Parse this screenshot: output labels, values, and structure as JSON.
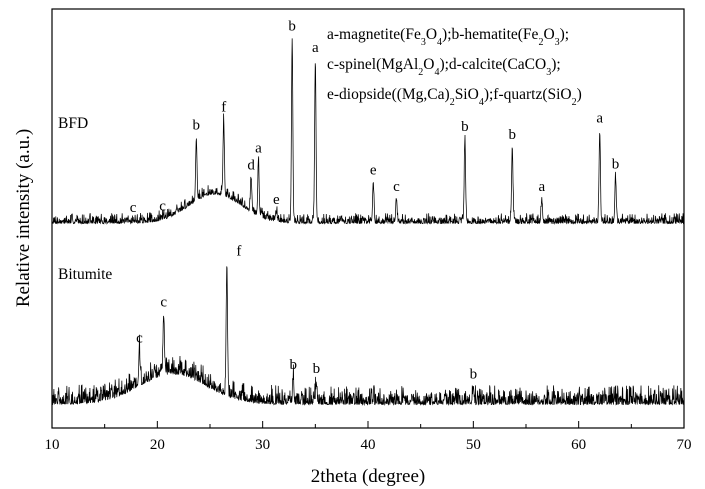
{
  "chart_data": {
    "type": "line",
    "xlabel": "2theta (degree)",
    "ylabel": "Relative intensity (a.u.)",
    "xlim": [
      10,
      70
    ],
    "x_ticks": [
      "10",
      "20",
      "30",
      "40",
      "50",
      "60",
      "70"
    ],
    "grid": false,
    "y_tick_labels": false,
    "legend": {
      "placement": "top-right",
      "lines": [
        [
          {
            "t": "a-magnetite(Fe"
          },
          {
            "t": "3",
            "sub": true
          },
          {
            "t": "O"
          },
          {
            "t": "4",
            "sub": true
          },
          {
            "t": ");b-hematite(Fe"
          },
          {
            "t": "2",
            "sub": true
          },
          {
            "t": "O"
          },
          {
            "t": "3",
            "sub": true
          },
          {
            "t": ");"
          }
        ],
        [
          {
            "t": "c-spinel(MgAl"
          },
          {
            "t": "2",
            "sub": true
          },
          {
            "t": "O"
          },
          {
            "t": "4",
            "sub": true
          },
          {
            "t": ");d-calcite(CaCO"
          },
          {
            "t": "3",
            "sub": true
          },
          {
            "t": ");"
          }
        ],
        [
          {
            "t": "e-diopside((Mg,Ca)"
          },
          {
            "t": "2",
            "sub": true
          },
          {
            "t": "SiO"
          },
          {
            "t": "4",
            "sub": true
          },
          {
            "t": ");f-quartz(SiO"
          },
          {
            "t": "2",
            "sub": true
          },
          {
            "t": ")"
          }
        ]
      ]
    },
    "series": [
      {
        "name": "BFD",
        "baseline": 12,
        "noise": 5,
        "hump": {
          "center": 25.5,
          "width": 3.5,
          "height": 14
        },
        "peaks": [
          {
            "x": 17.7,
            "y": 13,
            "label": "c"
          },
          {
            "x": 20.5,
            "y": 12,
            "label": "c"
          },
          {
            "x": 23.7,
            "y": 42,
            "label": "b"
          },
          {
            "x": 26.3,
            "y": 48,
            "label": "f"
          },
          {
            "x": 28.9,
            "y": 28,
            "label": "d"
          },
          {
            "x": 29.6,
            "y": 38,
            "label": "a"
          },
          {
            "x": 31.3,
            "y": 16,
            "label": "e"
          },
          {
            "x": 32.8,
            "y": 100,
            "label": "b"
          },
          {
            "x": 35.0,
            "y": 90,
            "label": "a"
          },
          {
            "x": 40.5,
            "y": 31,
            "label": "e"
          },
          {
            "x": 42.7,
            "y": 23,
            "label": "c"
          },
          {
            "x": 49.2,
            "y": 52,
            "label": "b"
          },
          {
            "x": 53.7,
            "y": 48,
            "label": "b"
          },
          {
            "x": 56.5,
            "y": 23,
            "label": "a"
          },
          {
            "x": 62.0,
            "y": 56,
            "label": "a"
          },
          {
            "x": 63.5,
            "y": 34,
            "label": "b"
          }
        ]
      },
      {
        "name": "Bitumite",
        "baseline": 6,
        "noise": 14,
        "hump": {
          "center": 21.5,
          "width": 4.5,
          "height": 22
        },
        "peaks": [
          {
            "x": 18.3,
            "y": 30,
            "label": "c"
          },
          {
            "x": 20.6,
            "y": 48,
            "label": "c"
          },
          {
            "x": 26.6,
            "y": 100,
            "label": "f"
          },
          {
            "x": 32.9,
            "y": 24,
            "label": "b"
          },
          {
            "x": 35.1,
            "y": 21,
            "label": "b"
          },
          {
            "x": 50.0,
            "y": 17,
            "label": "b"
          }
        ]
      }
    ]
  }
}
